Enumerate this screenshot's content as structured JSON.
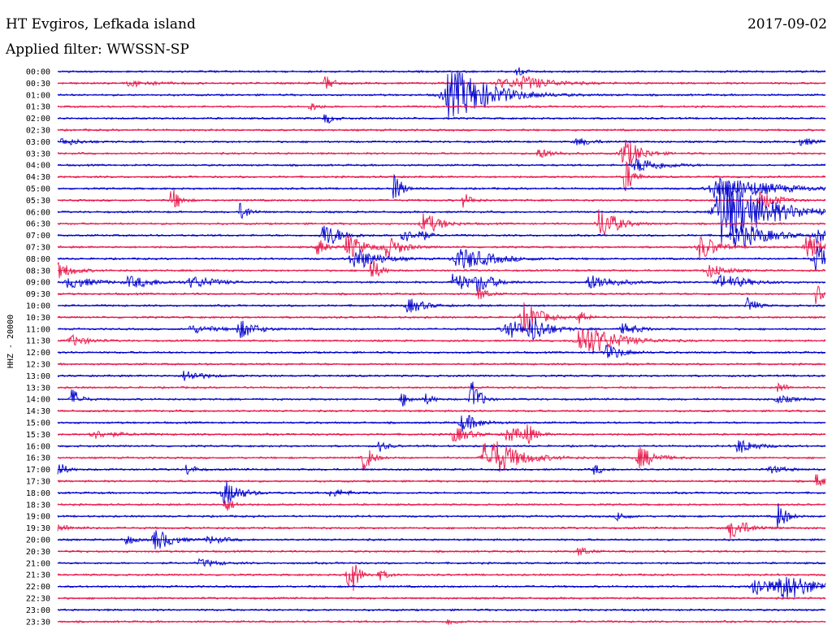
{
  "header": {
    "station": "HT Evgiros, Lefkada island",
    "filter": "Applied filter: WWSSN-SP",
    "date": "2017-09-02"
  },
  "chart_data": {
    "type": "line",
    "title": "HT Evgiros, Lefkada island",
    "subtitle": "Applied filter: WWSSN-SP",
    "date": "2017-09-02",
    "ylabel": "HHZ - 20000",
    "row_times": [
      "00:00",
      "00:30",
      "01:00",
      "01:30",
      "02:00",
      "02:30",
      "03:00",
      "03:30",
      "04:00",
      "04:30",
      "05:00",
      "05:30",
      "06:00",
      "06:30",
      "07:00",
      "07:30",
      "08:00",
      "08:30",
      "09:00",
      "09:30",
      "10:00",
      "10:30",
      "11:00",
      "11:30",
      "12:00",
      "12:30",
      "13:00",
      "13:30",
      "14:00",
      "14:30",
      "15:00",
      "15:30",
      "16:00",
      "16:30",
      "17:00",
      "17:30",
      "18:00",
      "18:30",
      "19:00",
      "19:30",
      "20:00",
      "20:30",
      "21:00",
      "21:30",
      "22:00",
      "22:30",
      "23:00",
      "23:30"
    ],
    "row_minutes": 30,
    "colors": [
      "#0000cc",
      "#e8174a"
    ],
    "events": [
      {
        "row": 0,
        "x": 0.6,
        "amp": 4,
        "dur": 0.01
      },
      {
        "row": 1,
        "x": 0.1,
        "amp": 3,
        "dur": 0.03
      },
      {
        "row": 1,
        "x": 0.35,
        "amp": 8,
        "dur": 0.01
      },
      {
        "row": 1,
        "x": 0.58,
        "amp": 5,
        "dur": 0.03
      },
      {
        "row": 1,
        "x": 0.61,
        "amp": 6,
        "dur": 0.04
      },
      {
        "row": 2,
        "x": 0.52,
        "amp": 28,
        "dur": 0.05
      },
      {
        "row": 3,
        "x": 0.33,
        "amp": 5,
        "dur": 0.01
      },
      {
        "row": 4,
        "x": 0.35,
        "amp": 6,
        "dur": 0.01
      },
      {
        "row": 6,
        "x": 0.01,
        "amp": 4,
        "dur": 0.02
      },
      {
        "row": 6,
        "x": 0.68,
        "amp": 4,
        "dur": 0.02
      },
      {
        "row": 6,
        "x": 0.97,
        "amp": 4,
        "dur": 0.02
      },
      {
        "row": 7,
        "x": 0.63,
        "amp": 5,
        "dur": 0.02
      },
      {
        "row": 7,
        "x": 0.74,
        "amp": 18,
        "dur": 0.02
      },
      {
        "row": 8,
        "x": 0.76,
        "amp": 8,
        "dur": 0.03
      },
      {
        "row": 9,
        "x": 0.74,
        "amp": 20,
        "dur": 0.01
      },
      {
        "row": 10,
        "x": 0.44,
        "amp": 16,
        "dur": 0.01
      },
      {
        "row": 10,
        "x": 0.87,
        "amp": 14,
        "dur": 0.06
      },
      {
        "row": 11,
        "x": 0.15,
        "amp": 14,
        "dur": 0.01
      },
      {
        "row": 11,
        "x": 0.53,
        "amp": 8,
        "dur": 0.01
      },
      {
        "row": 11,
        "x": 0.92,
        "amp": 10,
        "dur": 0.02
      },
      {
        "row": 12,
        "x": 0.24,
        "amp": 10,
        "dur": 0.01
      },
      {
        "row": 12,
        "x": 0.86,
        "amp": 16,
        "dur": 0.02
      },
      {
        "row": 12,
        "x": 0.88,
        "amp": 28,
        "dur": 0.06
      },
      {
        "row": 13,
        "x": 0.48,
        "amp": 12,
        "dur": 0.02
      },
      {
        "row": 13,
        "x": 0.71,
        "amp": 18,
        "dur": 0.02
      },
      {
        "row": 14,
        "x": 0.35,
        "amp": 14,
        "dur": 0.02
      },
      {
        "row": 14,
        "x": 0.45,
        "amp": 10,
        "dur": 0.01
      },
      {
        "row": 14,
        "x": 0.47,
        "amp": 10,
        "dur": 0.01
      },
      {
        "row": 14,
        "x": 0.89,
        "amp": 14,
        "dur": 0.04
      },
      {
        "row": 14,
        "x": 0.99,
        "amp": 10,
        "dur": 0.01
      },
      {
        "row": 15,
        "x": 0.34,
        "amp": 10,
        "dur": 0.01
      },
      {
        "row": 15,
        "x": 0.38,
        "amp": 14,
        "dur": 0.02
      },
      {
        "row": 15,
        "x": 0.43,
        "amp": 12,
        "dur": 0.02
      },
      {
        "row": 15,
        "x": 0.84,
        "amp": 14,
        "dur": 0.02
      },
      {
        "row": 15,
        "x": 0.98,
        "amp": 14,
        "dur": 0.02
      },
      {
        "row": 16,
        "x": 0.39,
        "amp": 12,
        "dur": 0.03
      },
      {
        "row": 16,
        "x": 0.53,
        "amp": 12,
        "dur": 0.04
      },
      {
        "row": 16,
        "x": 0.99,
        "amp": 16,
        "dur": 0.02
      },
      {
        "row": 17,
        "x": 0.0,
        "amp": 10,
        "dur": 0.02
      },
      {
        "row": 17,
        "x": 0.41,
        "amp": 14,
        "dur": 0.01
      },
      {
        "row": 17,
        "x": 0.85,
        "amp": 8,
        "dur": 0.02
      },
      {
        "row": 18,
        "x": 0.02,
        "amp": 6,
        "dur": 0.03
      },
      {
        "row": 18,
        "x": 0.1,
        "amp": 6,
        "dur": 0.03
      },
      {
        "row": 18,
        "x": 0.18,
        "amp": 6,
        "dur": 0.03
      },
      {
        "row": 18,
        "x": 0.52,
        "amp": 10,
        "dur": 0.02
      },
      {
        "row": 18,
        "x": 0.55,
        "amp": 10,
        "dur": 0.02
      },
      {
        "row": 18,
        "x": 0.7,
        "amp": 8,
        "dur": 0.03
      },
      {
        "row": 18,
        "x": 0.87,
        "amp": 8,
        "dur": 0.03
      },
      {
        "row": 19,
        "x": 0.55,
        "amp": 8,
        "dur": 0.01
      },
      {
        "row": 19,
        "x": 0.99,
        "amp": 12,
        "dur": 0.01
      },
      {
        "row": 20,
        "x": 0.46,
        "amp": 8,
        "dur": 0.02
      },
      {
        "row": 20,
        "x": 0.9,
        "amp": 10,
        "dur": 0.01
      },
      {
        "row": 21,
        "x": 0.61,
        "amp": 18,
        "dur": 0.02
      },
      {
        "row": 21,
        "x": 0.68,
        "amp": 8,
        "dur": 0.01
      },
      {
        "row": 22,
        "x": 0.18,
        "amp": 4,
        "dur": 0.03
      },
      {
        "row": 22,
        "x": 0.24,
        "amp": 10,
        "dur": 0.02
      },
      {
        "row": 22,
        "x": 0.59,
        "amp": 10,
        "dur": 0.03
      },
      {
        "row": 22,
        "x": 0.62,
        "amp": 12,
        "dur": 0.02
      },
      {
        "row": 22,
        "x": 0.74,
        "amp": 6,
        "dur": 0.02
      },
      {
        "row": 23,
        "x": 0.02,
        "amp": 6,
        "dur": 0.02
      },
      {
        "row": 23,
        "x": 0.69,
        "amp": 18,
        "dur": 0.04
      },
      {
        "row": 24,
        "x": 0.72,
        "amp": 8,
        "dur": 0.02
      },
      {
        "row": 26,
        "x": 0.17,
        "amp": 6,
        "dur": 0.02
      },
      {
        "row": 27,
        "x": 0.94,
        "amp": 6,
        "dur": 0.01
      },
      {
        "row": 28,
        "x": 0.02,
        "amp": 12,
        "dur": 0.01
      },
      {
        "row": 28,
        "x": 0.45,
        "amp": 8,
        "dur": 0.01
      },
      {
        "row": 28,
        "x": 0.54,
        "amp": 24,
        "dur": 0.01
      },
      {
        "row": 28,
        "x": 0.48,
        "amp": 6,
        "dur": 0.01
      },
      {
        "row": 28,
        "x": 0.94,
        "amp": 4,
        "dur": 0.02
      },
      {
        "row": 30,
        "x": 0.53,
        "amp": 10,
        "dur": 0.02
      },
      {
        "row": 31,
        "x": 0.05,
        "amp": 4,
        "dur": 0.03
      },
      {
        "row": 31,
        "x": 0.52,
        "amp": 8,
        "dur": 0.02
      },
      {
        "row": 31,
        "x": 0.59,
        "amp": 8,
        "dur": 0.02
      },
      {
        "row": 31,
        "x": 0.61,
        "amp": 12,
        "dur": 0.01
      },
      {
        "row": 32,
        "x": 0.89,
        "amp": 8,
        "dur": 0.02
      },
      {
        "row": 32,
        "x": 0.42,
        "amp": 6,
        "dur": 0.01
      },
      {
        "row": 33,
        "x": 0.4,
        "amp": 16,
        "dur": 0.01
      },
      {
        "row": 33,
        "x": 0.56,
        "amp": 18,
        "dur": 0.02
      },
      {
        "row": 33,
        "x": 0.58,
        "amp": 10,
        "dur": 0.04
      },
      {
        "row": 33,
        "x": 0.76,
        "amp": 12,
        "dur": 0.02
      },
      {
        "row": 34,
        "x": 0.0,
        "amp": 10,
        "dur": 0.01
      },
      {
        "row": 34,
        "x": 0.17,
        "amp": 6,
        "dur": 0.01
      },
      {
        "row": 34,
        "x": 0.7,
        "amp": 6,
        "dur": 0.01
      },
      {
        "row": 34,
        "x": 0.93,
        "amp": 4,
        "dur": 0.02
      },
      {
        "row": 35,
        "x": 0.99,
        "amp": 8,
        "dur": 0.01
      },
      {
        "row": 36,
        "x": 0.22,
        "amp": 14,
        "dur": 0.02
      },
      {
        "row": 36,
        "x": 0.36,
        "amp": 4,
        "dur": 0.02
      },
      {
        "row": 37,
        "x": 0.22,
        "amp": 8,
        "dur": 0.01
      },
      {
        "row": 38,
        "x": 0.73,
        "amp": 6,
        "dur": 0.01
      },
      {
        "row": 38,
        "x": 0.94,
        "amp": 16,
        "dur": 0.01
      },
      {
        "row": 39,
        "x": 0.0,
        "amp": 4,
        "dur": 0.02
      },
      {
        "row": 39,
        "x": 0.88,
        "amp": 12,
        "dur": 0.02
      },
      {
        "row": 40,
        "x": 0.09,
        "amp": 6,
        "dur": 0.01
      },
      {
        "row": 40,
        "x": 0.13,
        "amp": 12,
        "dur": 0.02
      },
      {
        "row": 40,
        "x": 0.2,
        "amp": 4,
        "dur": 0.02
      },
      {
        "row": 41,
        "x": 0.68,
        "amp": 6,
        "dur": 0.01
      },
      {
        "row": 42,
        "x": 0.19,
        "amp": 4,
        "dur": 0.02
      },
      {
        "row": 43,
        "x": 0.38,
        "amp": 30,
        "dur": 0.01
      },
      {
        "row": 43,
        "x": 0.42,
        "amp": 6,
        "dur": 0.01
      },
      {
        "row": 44,
        "x": 0.91,
        "amp": 12,
        "dur": 0.02
      },
      {
        "row": 44,
        "x": 0.95,
        "amp": 14,
        "dur": 0.04
      },
      {
        "row": 47,
        "x": 0.51,
        "amp": 4,
        "dur": 0.01
      }
    ]
  }
}
